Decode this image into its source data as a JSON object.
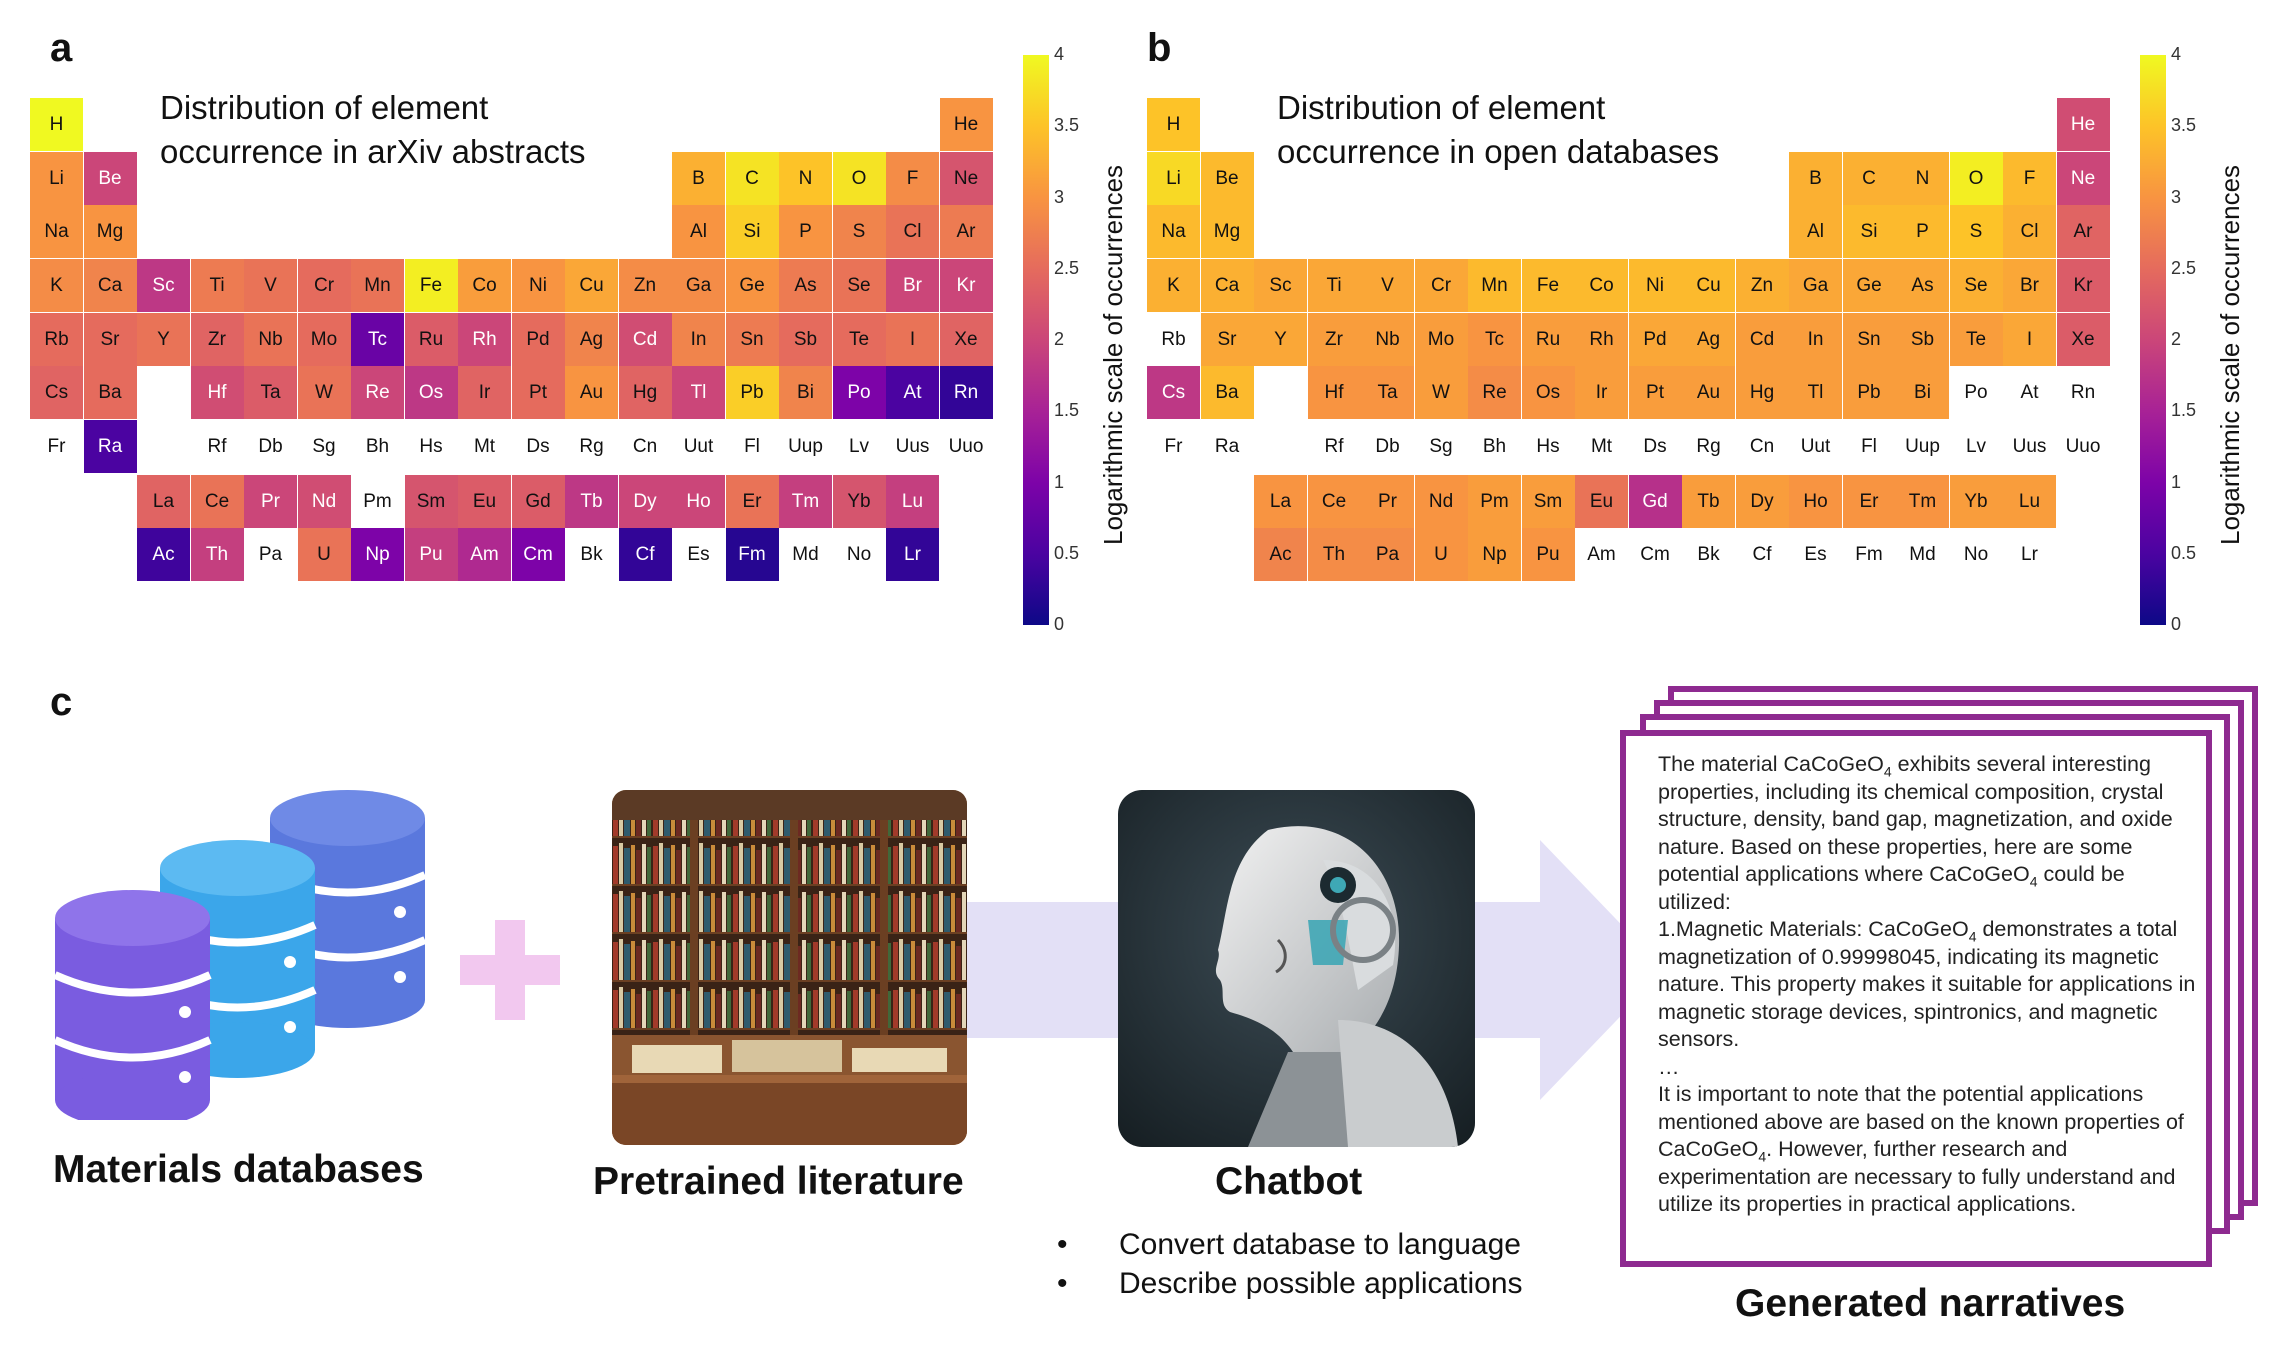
{
  "panels": {
    "a": {
      "letter": "a",
      "title": "Distribution of element\noccurrence in arXiv abstracts"
    },
    "b": {
      "letter": "b",
      "title": "Distribution of element\noccurrence in open databases"
    },
    "c": {
      "letter": "c"
    }
  },
  "colorbar": {
    "label": "Logarithmic scale of occurrences",
    "ticks": [
      "4",
      "3.5",
      "3",
      "2.5",
      "2",
      "1.5",
      "1",
      "0.5",
      "0"
    ]
  },
  "chart_data": [
    {
      "type": "heatmap",
      "title": "Distribution of element occurrence in arXiv abstracts",
      "colorbar_label": "Logarithmic scale of occurrences",
      "colorbar_range": [
        0,
        4
      ],
      "colormap": "plasma",
      "values": {
        "H": 4.0,
        "He": 3.0,
        "Li": 3.0,
        "Be": 2.0,
        "B": 3.3,
        "C": 3.8,
        "N": 3.5,
        "O": 3.8,
        "F": 2.9,
        "Ne": 2.2,
        "Na": 3.0,
        "Mg": 3.0,
        "Al": 3.0,
        "Si": 3.6,
        "P": 3.0,
        "S": 2.8,
        "Cl": 2.6,
        "Ar": 2.7,
        "K": 2.9,
        "Ca": 2.8,
        "Sc": 1.8,
        "Ti": 2.7,
        "V": 2.6,
        "Cr": 2.5,
        "Mn": 2.6,
        "Fe": 3.9,
        "Co": 3.1,
        "Ni": 3.0,
        "Cu": 3.2,
        "Zn": 2.9,
        "Ga": 2.9,
        "Ge": 3.0,
        "As": 2.7,
        "Se": 2.6,
        "Br": 2.0,
        "Kr": 2.0,
        "Rb": 2.5,
        "Sr": 2.5,
        "Y": 2.6,
        "Zr": 2.4,
        "Nb": 2.6,
        "Mo": 2.5,
        "Tc": 0.8,
        "Ru": 2.3,
        "Rh": 2.0,
        "Pd": 2.5,
        "Ag": 2.8,
        "Cd": 2.1,
        "In": 2.8,
        "Sn": 2.7,
        "Sb": 2.5,
        "Te": 2.5,
        "I": 2.6,
        "Xe": 2.4,
        "Cs": 2.4,
        "Ba": 2.5,
        "Hf": 2.1,
        "Ta": 2.3,
        "W": 2.6,
        "Re": 2.0,
        "Os": 1.8,
        "Ir": 2.4,
        "Pt": 2.5,
        "Au": 3.0,
        "Hg": 2.4,
        "Tl": 2.0,
        "Pb": 3.6,
        "Bi": 2.8,
        "Po": 1.0,
        "At": 0.5,
        "Rn": 0.3,
        "Fr": null,
        "Ra": 0.5,
        "Rf": null,
        "Db": null,
        "Sg": null,
        "Bh": null,
        "Hs": null,
        "Mt": null,
        "Ds": null,
        "Rg": null,
        "Cn": null,
        "Uut": null,
        "Fl": null,
        "Uup": null,
        "Lv": null,
        "Uus": null,
        "Uuo": null,
        "La": 2.4,
        "Ce": 2.6,
        "Pr": 2.0,
        "Nd": 2.1,
        "Pm": null,
        "Sm": 2.2,
        "Eu": 2.3,
        "Gd": 2.3,
        "Tb": 1.8,
        "Dy": 2.0,
        "Ho": 2.0,
        "Er": 2.6,
        "Tm": 1.9,
        "Yb": 2.2,
        "Lu": 1.9,
        "Ac": 0.4,
        "Th": 1.9,
        "Pa": null,
        "U": 2.6,
        "Np": 1.0,
        "Pu": 1.9,
        "Am": 1.6,
        "Cm": 1.0,
        "Bk": null,
        "Cf": 0.3,
        "Es": null,
        "Fm": 0.2,
        "Md": null,
        "No": null,
        "Lr": 0.3
      }
    },
    {
      "type": "heatmap",
      "title": "Distribution of element occurrence in open databases",
      "colorbar_label": "Logarithmic scale of occurrences",
      "colorbar_range": [
        0,
        4
      ],
      "colormap": "plasma",
      "values": {
        "H": 3.5,
        "He": 2.1,
        "Li": 3.7,
        "Be": 3.4,
        "B": 3.3,
        "C": 3.3,
        "N": 3.3,
        "O": 3.9,
        "F": 3.4,
        "Ne": 2.0,
        "Na": 3.4,
        "Mg": 3.4,
        "Al": 3.3,
        "Si": 3.4,
        "P": 3.4,
        "S": 3.5,
        "Cl": 3.3,
        "Ar": 2.4,
        "K": 3.3,
        "Ca": 3.3,
        "Sc": 3.2,
        "Ti": 3.2,
        "V": 3.2,
        "Cr": 3.2,
        "Mn": 3.4,
        "Fe": 3.4,
        "Co": 3.4,
        "Ni": 3.4,
        "Cu": 3.4,
        "Zn": 3.3,
        "Ga": 3.2,
        "Ge": 3.2,
        "As": 3.2,
        "Se": 3.3,
        "Br": 3.2,
        "Kr": 2.3,
        "Rb": null,
        "Sr": 3.2,
        "Y": 3.2,
        "Zr": 3.1,
        "Nb": 3.1,
        "Mo": 3.1,
        "Tc": 3.0,
        "Ru": 3.1,
        "Rh": 3.1,
        "Pd": 3.2,
        "Ag": 3.2,
        "Cd": 3.1,
        "In": 3.1,
        "Sn": 3.1,
        "Sb": 3.1,
        "Te": 3.1,
        "I": 3.2,
        "Xe": 2.3,
        "Cs": 1.8,
        "Ba": 3.4,
        "Hf": 3.0,
        "Ta": 3.0,
        "W": 3.1,
        "Re": 2.9,
        "Os": 3.0,
        "Ir": 3.1,
        "Pt": 3.1,
        "Au": 3.1,
        "Hg": 3.1,
        "Tl": 3.1,
        "Pb": 3.1,
        "Bi": 3.1,
        "Po": null,
        "At": null,
        "Rn": null,
        "Fr": null,
        "Ra": null,
        "Rf": null,
        "Db": null,
        "Sg": null,
        "Bh": null,
        "Hs": null,
        "Mt": null,
        "Ds": null,
        "Rg": null,
        "Cn": null,
        "Uut": null,
        "Fl": null,
        "Uup": null,
        "Lv": null,
        "Uus": null,
        "Uuo": null,
        "La": 3.0,
        "Ce": 3.0,
        "Pr": 3.0,
        "Nd": 3.0,
        "Pm": 3.1,
        "Sm": 3.1,
        "Eu": 2.6,
        "Gd": 1.7,
        "Tb": 3.1,
        "Dy": 3.1,
        "Ho": 3.0,
        "Er": 3.0,
        "Tm": 3.0,
        "Yb": 3.1,
        "Lu": 3.1,
        "Ac": 2.8,
        "Th": 2.9,
        "Pa": 2.9,
        "U": 3.0,
        "Np": 3.1,
        "Pu": 3.0,
        "Am": null,
        "Cm": null,
        "Bk": null,
        "Cf": null,
        "Es": null,
        "Fm": null,
        "Md": null,
        "No": null,
        "Lr": null
      }
    }
  ],
  "pipeline": {
    "databases_caption": "Materials databases",
    "literature_caption": "Pretrained literature",
    "chatbot_caption": "Chatbot",
    "chatbot_bullets": [
      "Convert database to language",
      "Describe possible applications"
    ],
    "narratives_caption": "Generated narratives",
    "colors": {
      "db_purple": "#7a5ce0",
      "db_blue": "#3ba6ea",
      "db_indigo": "#5a78dd",
      "plus": "#f2c8ef",
      "arrow": "#e3e0f6",
      "frame": "#8e2a90"
    }
  },
  "narrative": {
    "p1_a": "The material CaCoGeO",
    "p1_b": " exhibits several interesting properties, including its chemical composition, crystal structure, density, band gap, magnetization, and oxide nature. Based on these properties, here are some potential applications where CaCoGeO",
    "p1_c": " could be utilized:",
    "p2_a": "1.Magnetic Materials: CaCoGeO",
    "p2_b": " demonstrates a total magnetization of 0.99998045, indicating its magnetic nature. This property makes it suitable for applications in magnetic storage devices, spintronics, and magnetic sensors.",
    "ellipsis": "…",
    "p3_a": "It is important to note that the potential applications mentioned above are based on the known properties of CaCoGeO",
    "p3_b": ". However, further research and experimentation are necessary to fully understand and utilize its properties in practical applications.",
    "subscript": "4"
  }
}
